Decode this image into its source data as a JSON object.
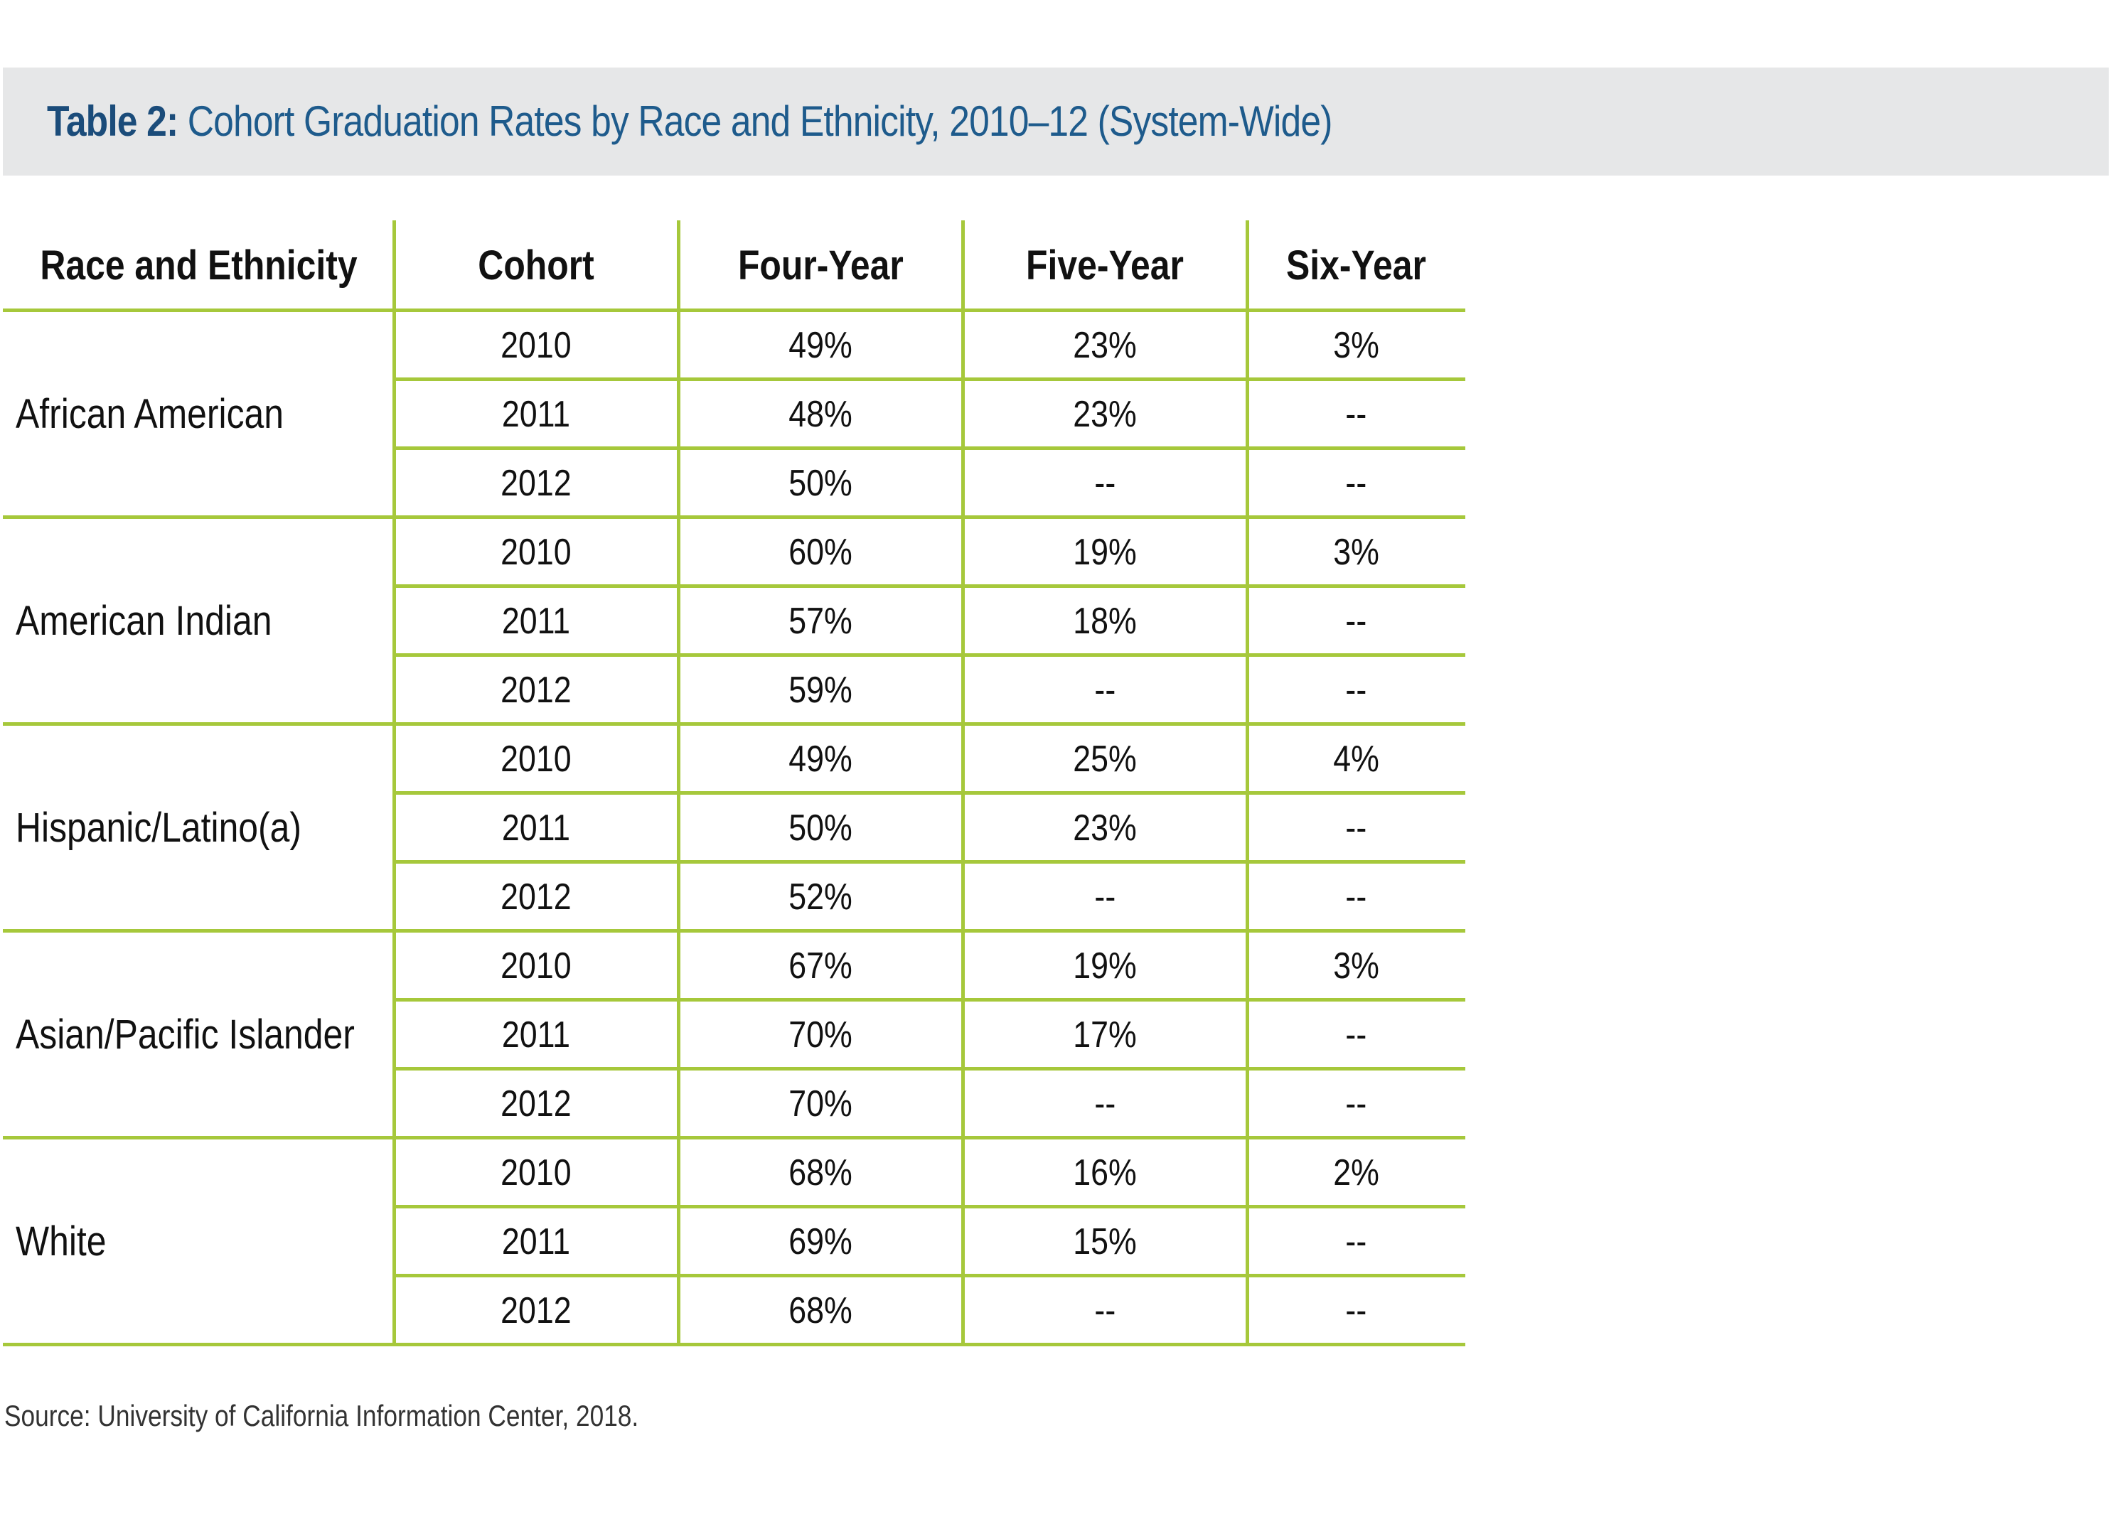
{
  "title": {
    "label": "Table 2:",
    "text": "Cohort Graduation Rates by Race and Ethnicity, 2010–12 (System-Wide)"
  },
  "table": {
    "headers": [
      "Race and Ethnicity",
      "Cohort",
      "Four-Year",
      "Five-Year",
      "Six-Year"
    ],
    "groups": [
      {
        "name": "African American",
        "rows": [
          {
            "cohort": "2010",
            "four_year": "49%",
            "five_year": "23%",
            "six_year": "3%"
          },
          {
            "cohort": "2011",
            "four_year": "48%",
            "five_year": "23%",
            "six_year": "--"
          },
          {
            "cohort": "2012",
            "four_year": "50%",
            "five_year": "--",
            "six_year": "--"
          }
        ]
      },
      {
        "name": "American Indian",
        "rows": [
          {
            "cohort": "2010",
            "four_year": "60%",
            "five_year": "19%",
            "six_year": "3%"
          },
          {
            "cohort": "2011",
            "four_year": "57%",
            "five_year": "18%",
            "six_year": "--"
          },
          {
            "cohort": "2012",
            "four_year": "59%",
            "five_year": "--",
            "six_year": "--"
          }
        ]
      },
      {
        "name": "Hispanic/Latino(a)",
        "rows": [
          {
            "cohort": "2010",
            "four_year": "49%",
            "five_year": "25%",
            "six_year": "4%"
          },
          {
            "cohort": "2011",
            "four_year": "50%",
            "five_year": "23%",
            "six_year": "--"
          },
          {
            "cohort": "2012",
            "four_year": "52%",
            "five_year": "--",
            "six_year": "--"
          }
        ]
      },
      {
        "name": "Asian/Pacific Islander",
        "rows": [
          {
            "cohort": "2010",
            "four_year": "67%",
            "five_year": "19%",
            "six_year": "3%"
          },
          {
            "cohort": "2011",
            "four_year": "70%",
            "five_year": "17%",
            "six_year": "--"
          },
          {
            "cohort": "2012",
            "four_year": "70%",
            "five_year": "--",
            "six_year": "--"
          }
        ]
      },
      {
        "name": "White",
        "rows": [
          {
            "cohort": "2010",
            "four_year": "68%",
            "five_year": "16%",
            "six_year": "2%"
          },
          {
            "cohort": "2011",
            "four_year": "69%",
            "five_year": "15%",
            "six_year": "--"
          },
          {
            "cohort": "2012",
            "four_year": "68%",
            "five_year": "--",
            "six_year": "--"
          }
        ]
      }
    ]
  },
  "source": "Source: University of California Information Center, 2018.",
  "colors": {
    "title_bar": "#e6e7e8",
    "title_text": "#1e5b8c",
    "rule": "#a6c83b"
  }
}
